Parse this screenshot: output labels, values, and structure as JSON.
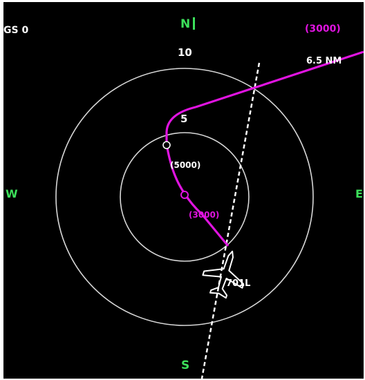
{
  "gs": "GS 0",
  "headings": {
    "north": "N",
    "south": "S",
    "west": "W",
    "east": "E"
  },
  "range_rings": {
    "outer_label": "10",
    "inner_label": "5"
  },
  "distance_readout": "6.5 NM",
  "route": {
    "top_altitude": "(3000)",
    "constraint_1": "(5000)",
    "constraint_2": "(3000)",
    "waypoint_label": "701L"
  },
  "colors": {
    "background": "#000000",
    "route": "#e014e0",
    "rings": "#d8d8d8",
    "heading": "#3ce05a",
    "text": "#ffffff"
  },
  "icons": {
    "aircraft": "airplane-symbol-icon",
    "runway": "runway-centerline-icon",
    "waypoint": "waypoint-circle-icon"
  }
}
